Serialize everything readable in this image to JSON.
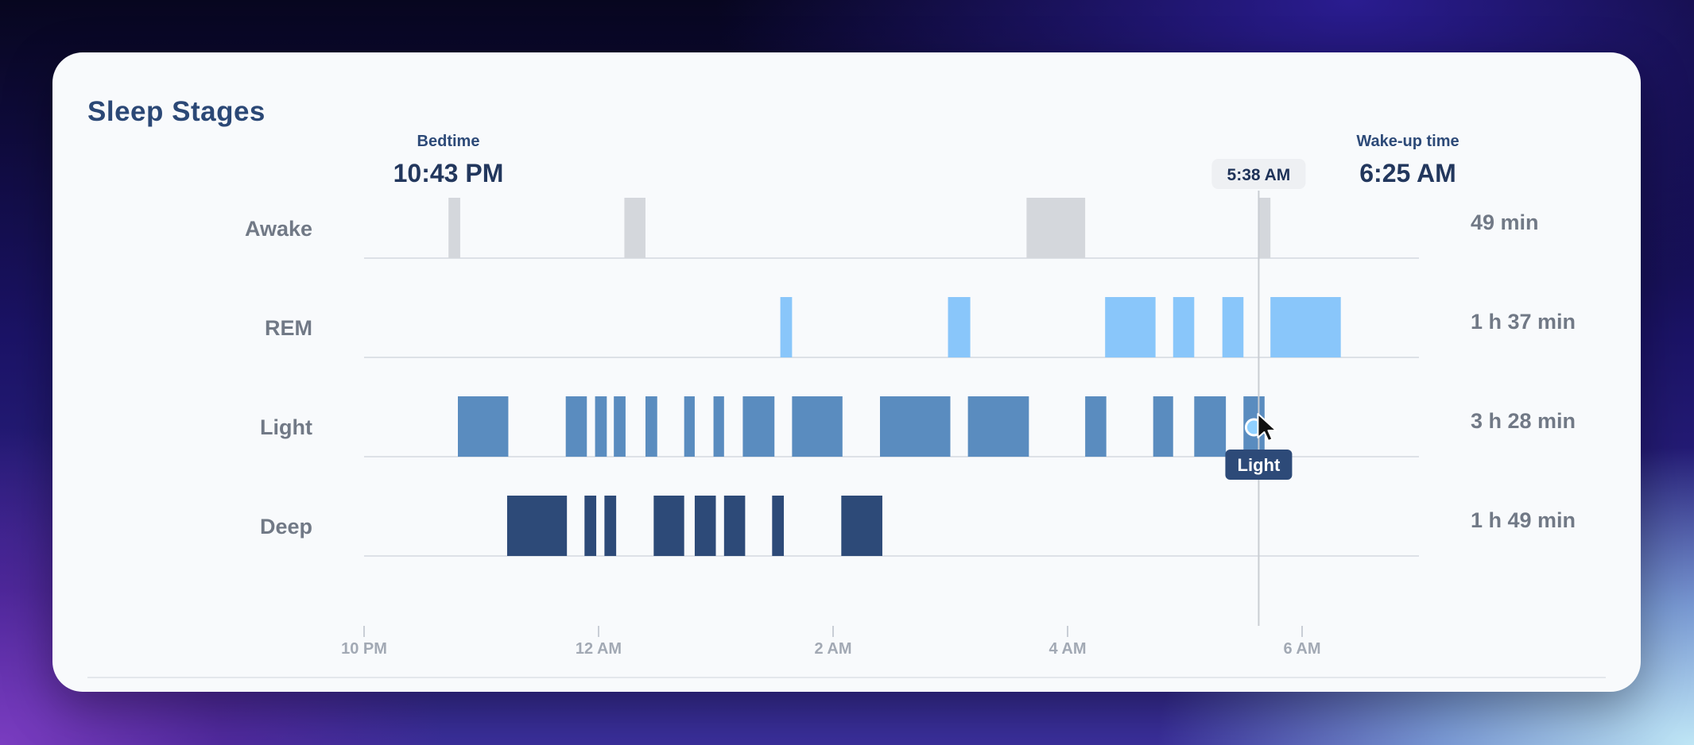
{
  "card": {
    "title": "Sleep Stages",
    "bedtime": {
      "label": "Bedtime",
      "time": "10:43 PM"
    },
    "wake": {
      "label": "Wake-up time",
      "time": "6:25 AM"
    },
    "cursor": {
      "time_label": "5:38 AM",
      "tooltip": "Light",
      "position_hours": 7.63
    }
  },
  "colors": {
    "Awake": "#d4d7dc",
    "REM": "#89c6fa",
    "Light": "#5a8cbf",
    "Deep": "#2d4a78",
    "grid": "#dde1e7",
    "cursor_line": "#c9cdd3"
  },
  "chart_data": {
    "type": "timeline",
    "x_ticks": [
      "10 PM",
      "12 AM",
      "2 AM",
      "4 AM",
      "6 AM"
    ],
    "x_tick_values_hours_after_10pm": [
      0,
      2,
      4,
      6,
      8
    ],
    "x_range_hours_after_10pm": [
      0,
      9
    ],
    "stages": [
      {
        "name": "Awake",
        "duration": "49 min",
        "segments": [
          [
            0.72,
            0.82
          ],
          [
            2.22,
            2.4
          ],
          [
            5.65,
            6.15
          ],
          [
            7.63,
            7.73
          ]
        ]
      },
      {
        "name": "REM",
        "duration": "1 h 37 min",
        "segments": [
          [
            3.55,
            3.65
          ],
          [
            4.98,
            5.17
          ],
          [
            6.32,
            6.75
          ],
          [
            6.9,
            7.08
          ],
          [
            7.32,
            7.5
          ],
          [
            7.73,
            8.33
          ]
        ]
      },
      {
        "name": "Light",
        "duration": "3 h 28 min",
        "segments": [
          [
            0.8,
            1.23
          ],
          [
            1.72,
            1.9
          ],
          [
            1.97,
            2.07
          ],
          [
            2.13,
            2.23
          ],
          [
            2.4,
            2.5
          ],
          [
            2.73,
            2.82
          ],
          [
            2.98,
            3.07
          ],
          [
            3.23,
            3.5
          ],
          [
            3.65,
            4.08
          ],
          [
            4.4,
            5.0
          ],
          [
            5.15,
            5.67
          ],
          [
            6.15,
            6.33
          ],
          [
            6.73,
            6.9
          ],
          [
            7.08,
            7.35
          ],
          [
            7.5,
            7.68
          ]
        ]
      },
      {
        "name": "Deep",
        "duration": "1 h 49 min",
        "segments": [
          [
            1.22,
            1.73
          ],
          [
            1.88,
            1.98
          ],
          [
            2.05,
            2.15
          ],
          [
            2.47,
            2.73
          ],
          [
            2.82,
            3.0
          ],
          [
            3.07,
            3.25
          ],
          [
            3.48,
            3.58
          ],
          [
            4.07,
            4.42
          ]
        ]
      }
    ]
  }
}
